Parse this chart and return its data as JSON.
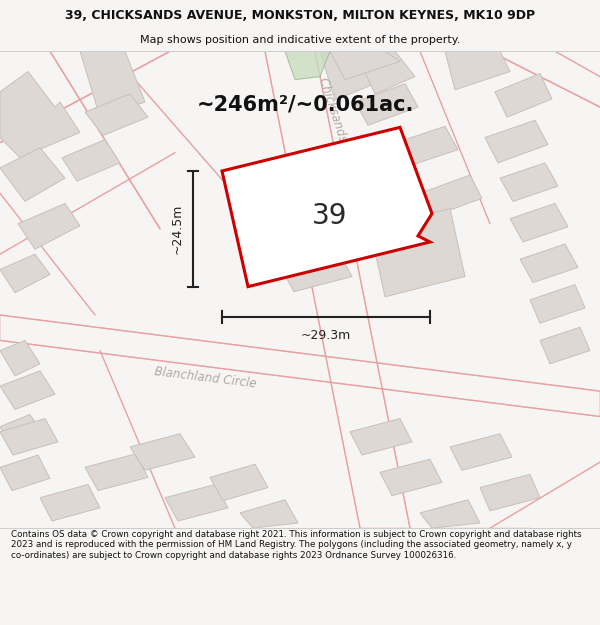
{
  "title": "39, CHICKSANDS AVENUE, MONKSTON, MILTON KEYNES, MK10 9DP",
  "subtitle": "Map shows position and indicative extent of the property.",
  "footer": "Contains OS data © Crown copyright and database right 2021. This information is subject to Crown copyright and database rights 2023 and is reproduced with the permission of HM Land Registry. The polygons (including the associated geometry, namely x, y co-ordinates) are subject to Crown copyright and database rights 2023 Ordnance Survey 100026316.",
  "area_label": "~246m²/~0.061ac.",
  "number_label": "39",
  "width_label": "~29.3m",
  "height_label": "~24.5m",
  "bg_color": "#f7f5f3",
  "map_bg": "#f2eeea",
  "road_color": "#e8a0a0",
  "building_color": "#c8c0bc",
  "building_fill": "#ddd8d4",
  "plot_color": "#cc0000",
  "plot_fill": "#ffffff",
  "road_label_color": "#b0a8a4",
  "dim_color": "#222222",
  "title_color": "#111111",
  "footer_color": "#111111"
}
